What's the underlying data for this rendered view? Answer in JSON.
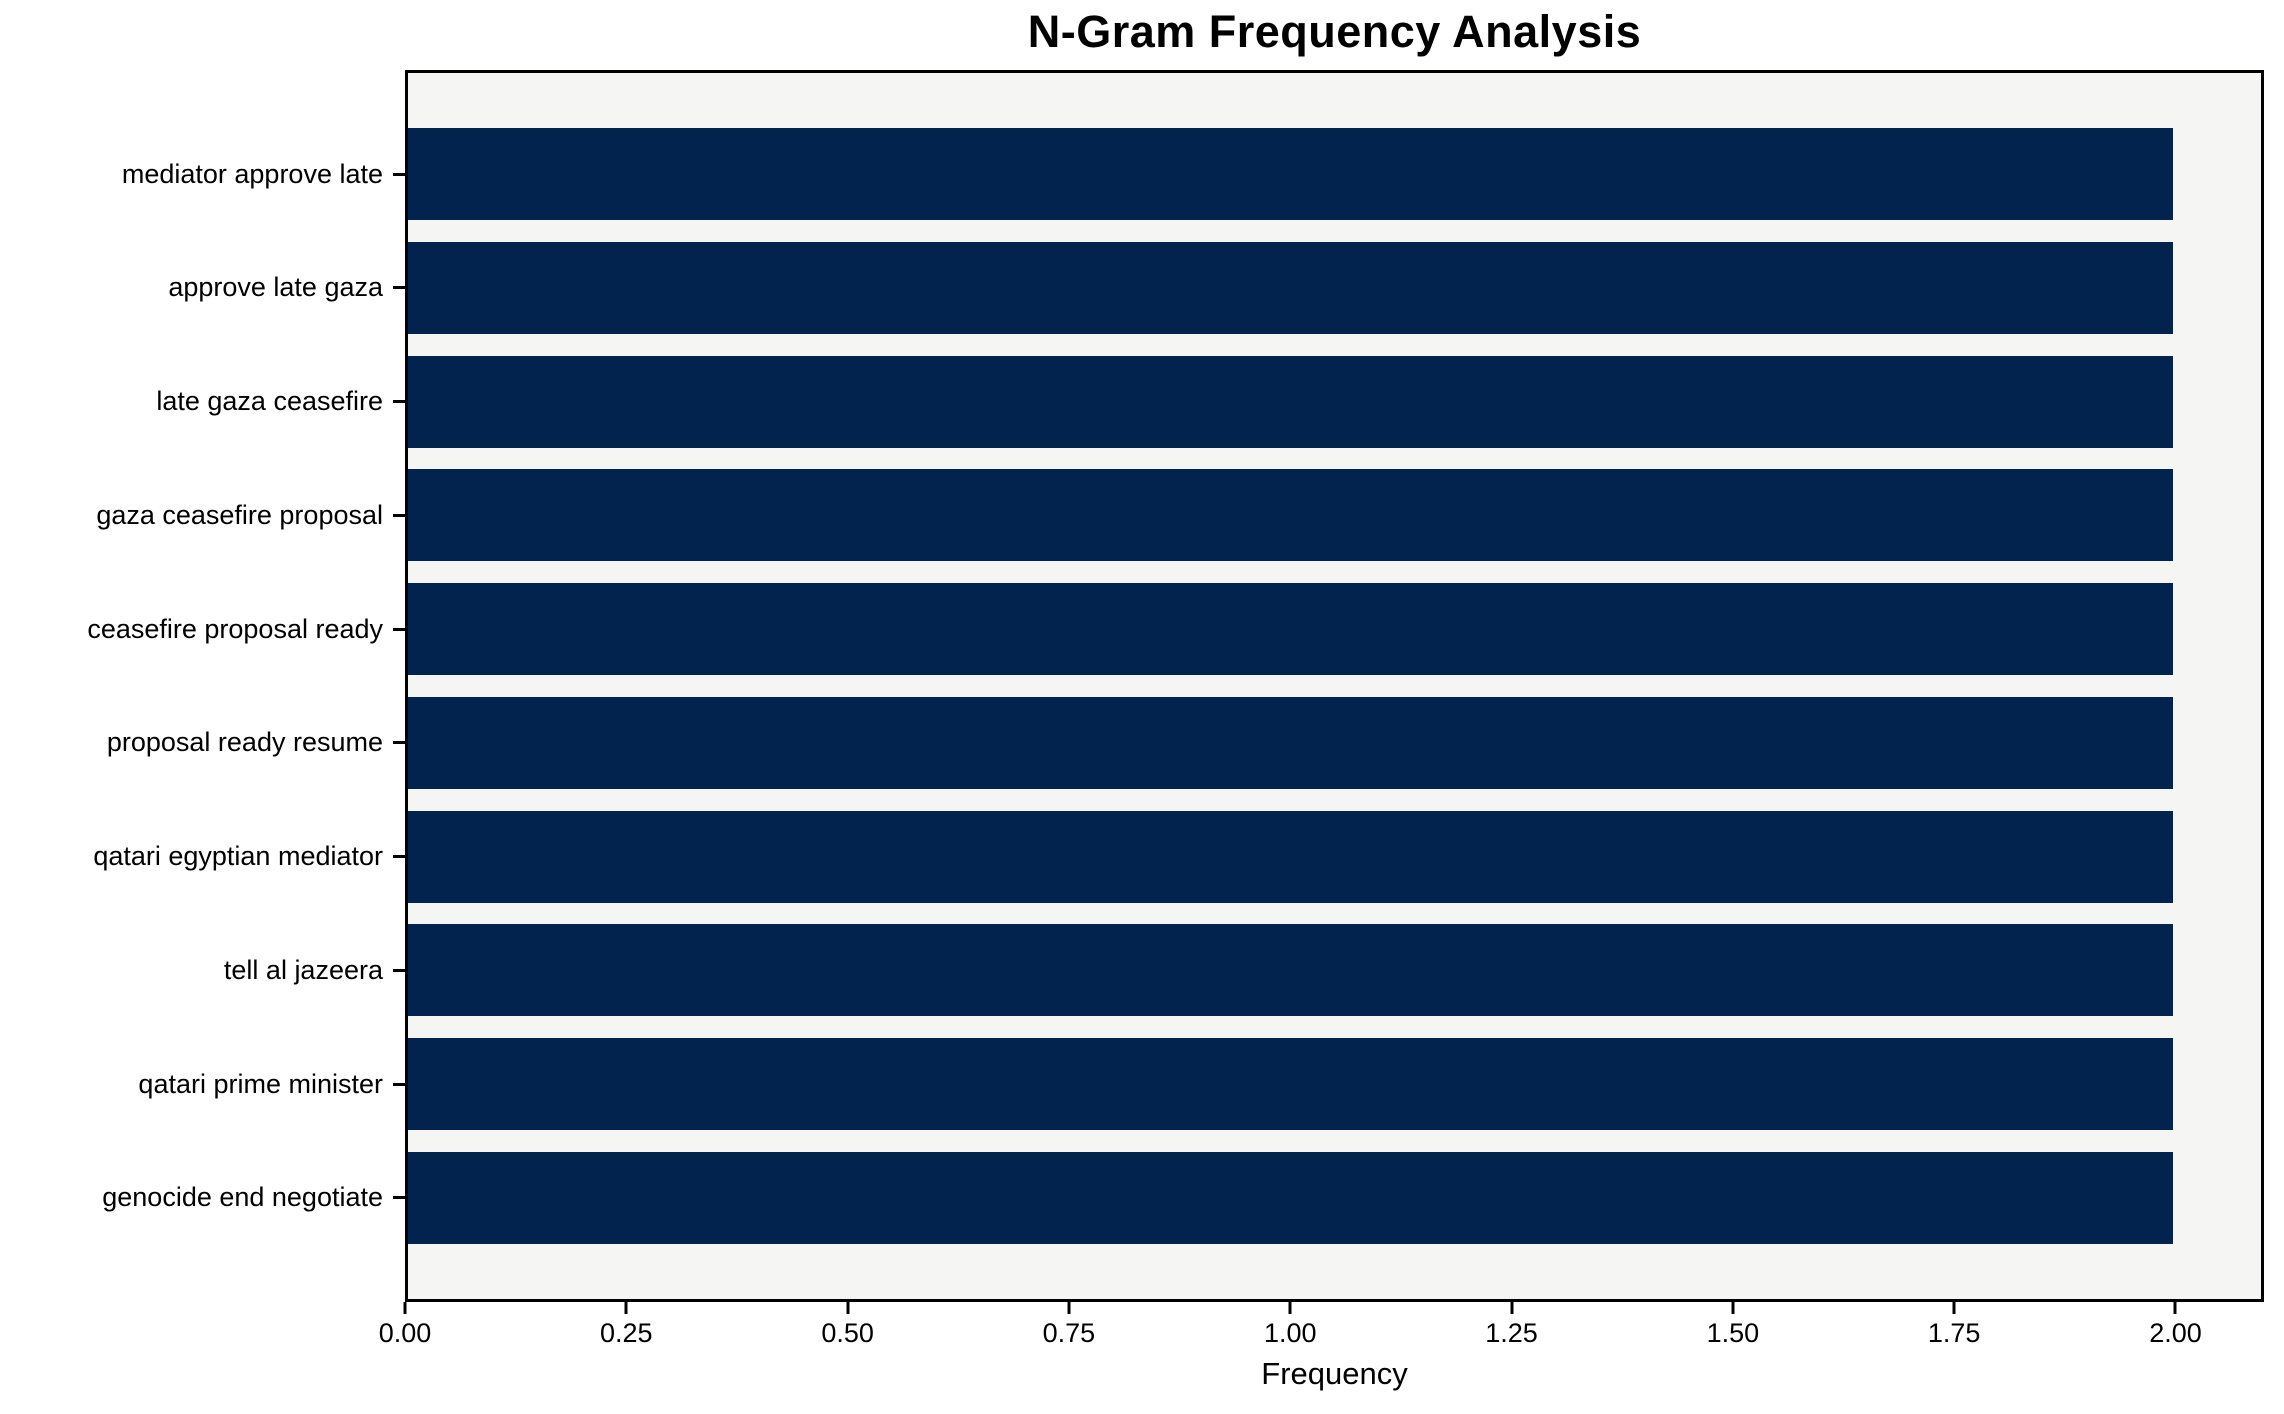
{
  "chart_data": {
    "type": "bar",
    "orientation": "horizontal",
    "title": "N-Gram Frequency Analysis",
    "xlabel": "Frequency",
    "ylabel": "",
    "categories": [
      "mediator approve late",
      "approve late gaza",
      "late gaza ceasefire",
      "gaza ceasefire proposal",
      "ceasefire proposal ready",
      "proposal ready resume",
      "qatari egyptian mediator",
      "tell al jazeera",
      "qatari prime minister",
      "genocide end negotiate"
    ],
    "values": [
      2,
      2,
      2,
      2,
      2,
      2,
      2,
      2,
      2,
      2
    ],
    "xlim": [
      0,
      2.1
    ],
    "xticks": [
      0,
      0.25,
      0.5,
      0.75,
      1.0,
      1.25,
      1.5,
      1.75,
      2.0
    ],
    "xtick_labels": [
      "0.00",
      "0.25",
      "0.50",
      "0.75",
      "1.00",
      "1.25",
      "1.50",
      "1.75",
      "2.00"
    ],
    "grid": false,
    "legend_position": "none",
    "colors": {
      "bar": "#02234d",
      "plot_background": "#f5f5f4",
      "figure_background": "#ffffff",
      "spine": "#000000",
      "text": "#000000"
    }
  }
}
